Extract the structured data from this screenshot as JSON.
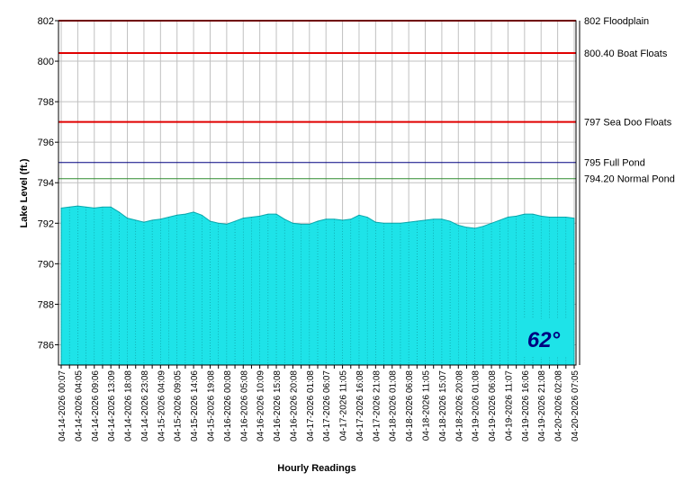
{
  "chart_data": {
    "type": "area",
    "y_label": "Lake Level (ft.)",
    "x_label": "Hourly Readings",
    "categories": [
      "04-14-2026 00:07",
      null,
      "04-14-2026 04:05",
      null,
      "04-14-2026 09:06",
      null,
      "04-14-2026 13:09",
      null,
      "04-14-2026 18:08",
      null,
      "04-14-2026 23:08",
      null,
      "04-15-2026 04:09",
      null,
      "04-15-2026 09:05",
      null,
      "04-15-2026 14:06",
      null,
      "04-15-2026 19:08",
      null,
      "04-16-2026 00:08",
      null,
      "04-16-2026 05:08",
      null,
      "04-16-2026 10:09",
      null,
      "04-16-2026 15:08",
      null,
      "04-16-2026 20:08",
      null,
      "04-17-2026 01:08",
      null,
      "04-17-2026 06:07",
      null,
      "04-17-2026 11:05",
      null,
      "04-17-2026 16:08",
      null,
      "04-17-2026 21:08",
      null,
      "04-18-2026 01:08",
      null,
      "04-18-2026 06:08",
      null,
      "04-18-2026 11:05",
      null,
      "04-18-2026 15:07",
      null,
      "04-18-2026 20:08",
      null,
      "04-19-2026 01:08",
      null,
      "04-19-2026 06:08",
      null,
      "04-19-2026 11:07",
      null,
      "04-19-2026 16:06",
      null,
      "04-19-2026 21:08",
      null,
      "04-20-2026 02:08",
      null,
      "04-20-2026 07:05"
    ],
    "values": [
      792.75,
      792.8,
      792.85,
      792.8,
      792.75,
      792.8,
      792.8,
      792.55,
      792.25,
      792.15,
      792.05,
      792.15,
      792.2,
      792.3,
      792.4,
      792.45,
      792.55,
      792.4,
      792.1,
      792.0,
      791.95,
      792.1,
      792.25,
      792.3,
      792.35,
      792.45,
      792.45,
      792.2,
      792.0,
      791.95,
      791.95,
      792.1,
      792.2,
      792.2,
      792.15,
      792.2,
      792.4,
      792.3,
      792.05,
      792.0,
      792.0,
      792.0,
      792.05,
      792.1,
      792.15,
      792.2,
      792.2,
      792.1,
      791.9,
      791.8,
      791.75,
      791.85,
      792.0,
      792.15,
      792.3,
      792.35,
      792.45,
      792.45,
      792.35,
      792.3,
      792.3,
      792.3,
      792.25
    ],
    "color": "#1ee3e8",
    "ylim": [
      785,
      802
    ],
    "yticks": [
      786,
      788,
      790,
      792,
      794,
      796,
      798,
      800,
      802
    ],
    "grid": true,
    "reference_lines": [
      {
        "value": 802,
        "label": "802 Floodplain",
        "color": "#e00000"
      },
      {
        "value": 800.4,
        "label": "800.40 Boat Floats",
        "color": "#e00000"
      },
      {
        "value": 797,
        "label": "797 Sea Doo Floats",
        "color": "#e00000"
      },
      {
        "value": 795,
        "label": "795 Full Pond",
        "color": "#000080"
      },
      {
        "value": 794.2,
        "label": "794.20 Normal Pond",
        "color": "#2e8b2e"
      }
    ],
    "temperature": "62°"
  }
}
